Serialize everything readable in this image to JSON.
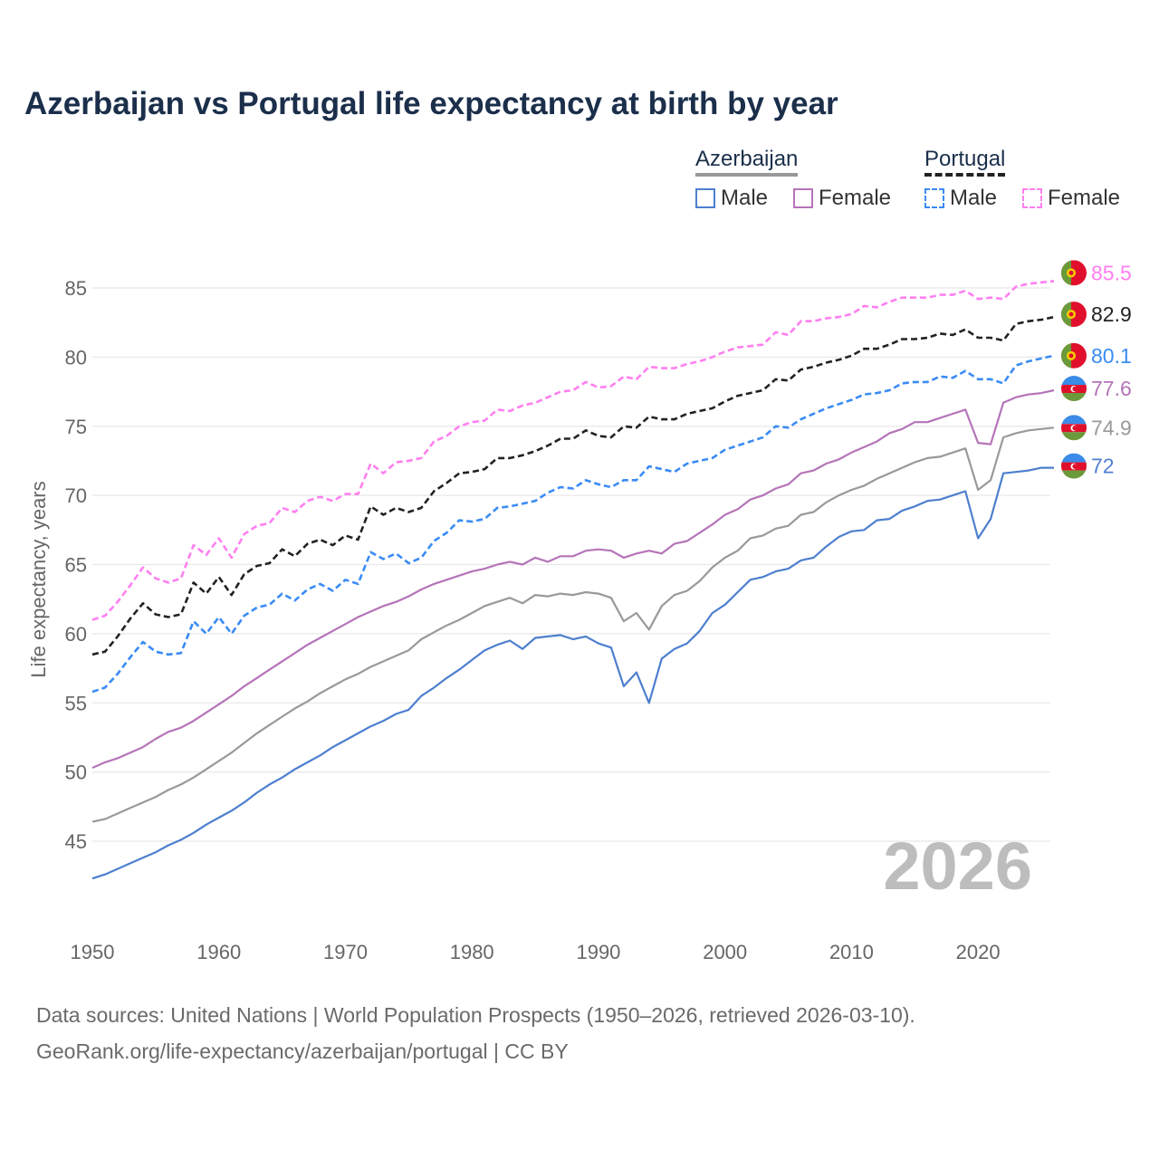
{
  "chart_data": {
    "type": "line",
    "title": "Azerbaijan vs Portugal life expectancy at birth by year",
    "xlabel": "",
    "ylabel": "Life expectancy, years",
    "x_start": 1950,
    "x_end": 2026,
    "xlim": [
      1950,
      2026
    ],
    "ylim": [
      41,
      87
    ],
    "xticks": [
      1950,
      1960,
      1970,
      1980,
      1990,
      2000,
      2010,
      2020
    ],
    "yticks": [
      45,
      50,
      55,
      60,
      65,
      70,
      75,
      80,
      85
    ],
    "grid": true,
    "year_watermark": "2026",
    "legend": {
      "placement": "top-right",
      "groups": [
        {
          "name": "Azerbaijan",
          "items": [
            "Male",
            "Female"
          ]
        },
        {
          "name": "Portugal",
          "items": [
            "Male",
            "Female"
          ]
        }
      ]
    },
    "series": [
      {
        "name": "Portugal Female",
        "country": "Portugal",
        "color": "#ff7ff0",
        "dashed": true,
        "end_label": "85.5",
        "values": [
          61.0,
          61.3,
          62.3,
          63.5,
          64.8,
          64.0,
          63.7,
          64.0,
          66.4,
          65.7,
          66.9,
          65.5,
          67.2,
          67.8,
          68.0,
          69.1,
          68.8,
          69.6,
          69.9,
          69.6,
          70.1,
          70.1,
          72.3,
          71.6,
          72.4,
          72.5,
          72.7,
          73.9,
          74.3,
          75.0,
          75.3,
          75.4,
          76.2,
          76.1,
          76.5,
          76.7,
          77.1,
          77.5,
          77.6,
          78.2,
          77.8,
          77.9,
          78.6,
          78.4,
          79.3,
          79.2,
          79.2,
          79.5,
          79.7,
          80.0,
          80.4,
          80.7,
          80.8,
          80.9,
          81.8,
          81.6,
          82.6,
          82.6,
          82.8,
          82.9,
          83.1,
          83.7,
          83.6,
          84.0,
          84.3,
          84.3,
          84.3,
          84.5,
          84.5,
          84.8,
          84.2,
          84.3,
          84.2,
          85.1,
          85.3,
          85.4,
          85.5
        ]
      },
      {
        "name": "Portugal Total",
        "country": "Portugal",
        "color": "#222222",
        "dashed": true,
        "end_label": "82.9",
        "values": [
          58.5,
          58.7,
          59.8,
          61.1,
          62.2,
          61.4,
          61.2,
          61.4,
          63.7,
          62.9,
          64.1,
          62.8,
          64.3,
          64.9,
          65.1,
          66.1,
          65.6,
          66.5,
          66.8,
          66.4,
          67.1,
          66.8,
          69.2,
          68.6,
          69.1,
          68.8,
          69.1,
          70.3,
          70.9,
          71.6,
          71.7,
          71.9,
          72.7,
          72.7,
          72.9,
          73.2,
          73.6,
          74.1,
          74.1,
          74.7,
          74.3,
          74.2,
          75.0,
          74.9,
          75.7,
          75.5,
          75.5,
          75.9,
          76.1,
          76.3,
          76.8,
          77.2,
          77.4,
          77.6,
          78.4,
          78.3,
          79.1,
          79.3,
          79.6,
          79.8,
          80.1,
          80.6,
          80.6,
          80.9,
          81.3,
          81.3,
          81.4,
          81.7,
          81.6,
          82.0,
          81.4,
          81.4,
          81.2,
          82.4,
          82.6,
          82.7,
          82.9
        ]
      },
      {
        "name": "Portugal Male",
        "country": "Portugal",
        "color": "#3a8bf5",
        "dashed": true,
        "end_label": "80.1",
        "values": [
          55.8,
          56.1,
          57.1,
          58.3,
          59.4,
          58.7,
          58.5,
          58.6,
          60.9,
          60.0,
          61.2,
          60.0,
          61.3,
          61.9,
          62.1,
          62.9,
          62.4,
          63.2,
          63.6,
          63.1,
          63.9,
          63.6,
          65.9,
          65.4,
          65.8,
          65.1,
          65.5,
          66.7,
          67.3,
          68.2,
          68.1,
          68.3,
          69.1,
          69.2,
          69.4,
          69.6,
          70.2,
          70.6,
          70.5,
          71.1,
          70.8,
          70.6,
          71.1,
          71.1,
          72.1,
          71.9,
          71.7,
          72.3,
          72.5,
          72.7,
          73.3,
          73.6,
          73.9,
          74.2,
          75.0,
          74.9,
          75.5,
          75.9,
          76.3,
          76.6,
          76.9,
          77.3,
          77.4,
          77.6,
          78.1,
          78.2,
          78.2,
          78.6,
          78.5,
          79.0,
          78.4,
          78.4,
          78.1,
          79.4,
          79.7,
          79.9,
          80.1
        ]
      },
      {
        "name": "Azerbaijan Female",
        "country": "Azerbaijan",
        "color": "#b574b8",
        "dashed": false,
        "end_label": "77.6",
        "values": [
          50.3,
          50.7,
          51.0,
          51.4,
          51.8,
          52.4,
          52.9,
          53.2,
          53.7,
          54.3,
          54.9,
          55.5,
          56.2,
          56.8,
          57.4,
          58.0,
          58.6,
          59.2,
          59.7,
          60.2,
          60.7,
          61.2,
          61.6,
          62.0,
          62.3,
          62.7,
          63.2,
          63.6,
          63.9,
          64.2,
          64.5,
          64.7,
          65.0,
          65.2,
          65.0,
          65.5,
          65.2,
          65.6,
          65.6,
          66.0,
          66.1,
          66.0,
          65.5,
          65.8,
          66.0,
          65.8,
          66.5,
          66.7,
          67.3,
          67.9,
          68.6,
          69.0,
          69.7,
          70.0,
          70.5,
          70.8,
          71.6,
          71.8,
          72.3,
          72.6,
          73.1,
          73.5,
          73.9,
          74.5,
          74.8,
          75.3,
          75.3,
          75.6,
          75.9,
          76.2,
          73.8,
          73.7,
          76.7,
          77.1,
          77.3,
          77.4,
          77.6
        ]
      },
      {
        "name": "Azerbaijan Total",
        "country": "Azerbaijan",
        "color": "#999999",
        "dashed": false,
        "end_label": "74.9",
        "values": [
          46.4,
          46.6,
          47.0,
          47.4,
          47.8,
          48.2,
          48.7,
          49.1,
          49.6,
          50.2,
          50.8,
          51.4,
          52.1,
          52.8,
          53.4,
          54.0,
          54.6,
          55.1,
          55.7,
          56.2,
          56.7,
          57.1,
          57.6,
          58.0,
          58.4,
          58.8,
          59.6,
          60.1,
          60.6,
          61.0,
          61.5,
          62.0,
          62.3,
          62.6,
          62.2,
          62.8,
          62.7,
          62.9,
          62.8,
          63.0,
          62.9,
          62.6,
          60.9,
          61.5,
          60.3,
          62.0,
          62.8,
          63.1,
          63.8,
          64.8,
          65.5,
          66.0,
          66.9,
          67.1,
          67.6,
          67.8,
          68.6,
          68.8,
          69.5,
          70.0,
          70.4,
          70.7,
          71.2,
          71.6,
          72.0,
          72.4,
          72.7,
          72.8,
          73.1,
          73.4,
          70.4,
          71.1,
          74.2,
          74.5,
          74.7,
          74.8,
          74.9
        ]
      },
      {
        "name": "Azerbaijan Male",
        "country": "Azerbaijan",
        "color": "#4d7fcf",
        "dashed": false,
        "end_label": "72",
        "values": [
          42.3,
          42.6,
          43.0,
          43.4,
          43.8,
          44.2,
          44.7,
          45.1,
          45.6,
          46.2,
          46.7,
          47.2,
          47.8,
          48.5,
          49.1,
          49.6,
          50.2,
          50.7,
          51.2,
          51.8,
          52.3,
          52.8,
          53.3,
          53.7,
          54.2,
          54.5,
          55.5,
          56.1,
          56.8,
          57.4,
          58.1,
          58.8,
          59.2,
          59.5,
          58.9,
          59.7,
          59.8,
          59.9,
          59.6,
          59.8,
          59.3,
          59.0,
          56.2,
          57.2,
          55.0,
          58.2,
          58.9,
          59.3,
          60.2,
          61.5,
          62.1,
          63.0,
          63.9,
          64.1,
          64.5,
          64.7,
          65.3,
          65.5,
          66.3,
          67.0,
          67.4,
          67.5,
          68.2,
          68.3,
          68.9,
          69.2,
          69.6,
          69.7,
          70.0,
          70.3,
          66.9,
          68.3,
          71.6,
          71.7,
          71.8,
          72.0,
          72.0
        ]
      }
    ]
  },
  "footer": {
    "line1": "Data sources: United Nations | World Population Prospects (1950–2026, retrieved 2026-03-10).",
    "line2": "GeoRank.org/life-expectancy/azerbaijan/portugal | CC BY"
  }
}
